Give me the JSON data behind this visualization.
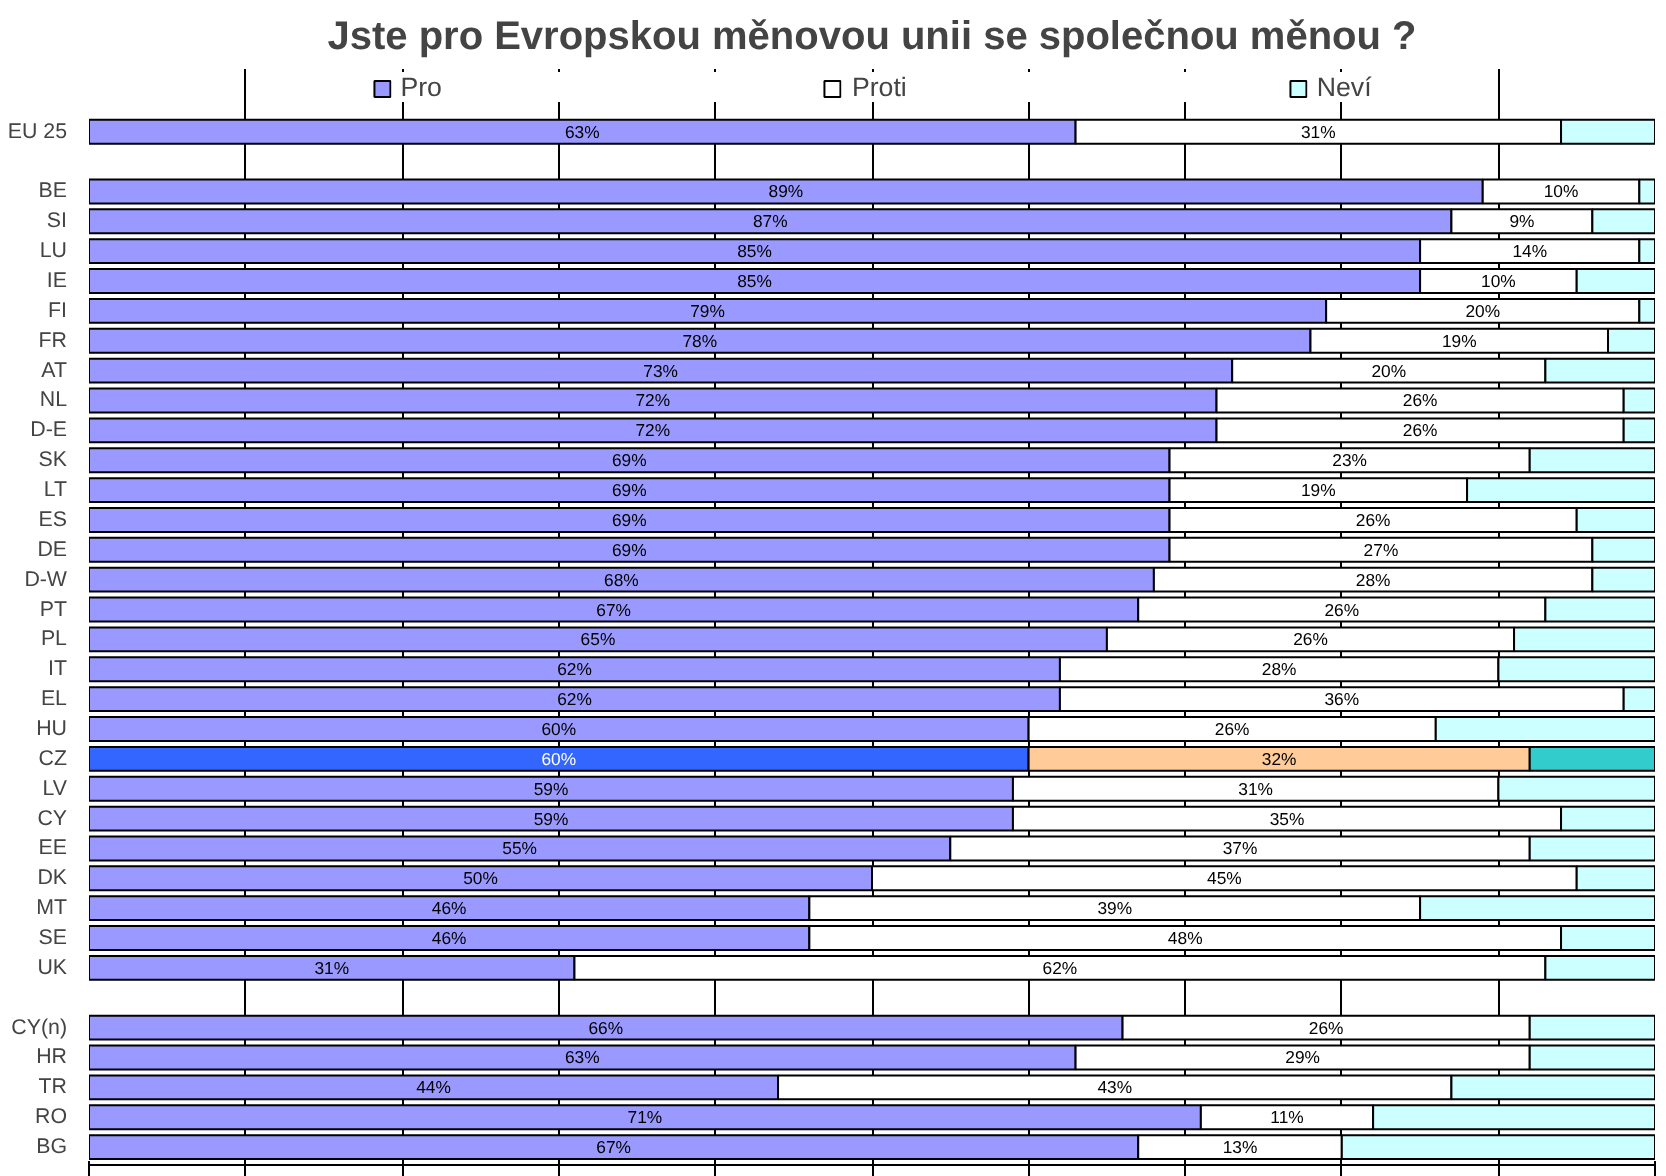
{
  "chart_data": {
    "type": "bar",
    "orientation": "horizontal",
    "stacked": true,
    "title": "Jste pro Evropskou měnovou unii se společnou měnou ?",
    "categories": [
      "EU 25",
      null,
      "BE",
      "SI",
      "LU",
      "IE",
      "FI",
      "FR",
      "AT",
      "NL",
      "D-E",
      "SK",
      "LT",
      "ES",
      "DE",
      "D-W",
      "PT",
      "PL",
      "IT",
      "EL",
      "HU",
      "CZ",
      "LV",
      "CY",
      "EE",
      "DK",
      "MT",
      "SE",
      "UK",
      null,
      "CY(n)",
      "HR",
      "TR",
      "RO",
      "BG"
    ],
    "series": [
      {
        "name": "Pro",
        "color": "#9999ff",
        "colors": [
          null,
          null,
          null,
          null,
          null,
          null,
          null,
          null,
          null,
          null,
          null,
          null,
          null,
          null,
          null,
          null,
          null,
          null,
          null,
          null,
          null,
          "#3366ff",
          null,
          null,
          null,
          null,
          null,
          null,
          null,
          null,
          null,
          null,
          null,
          null,
          null
        ],
        "values": [
          63,
          null,
          89,
          87,
          85,
          85,
          79,
          78,
          73,
          72,
          72,
          69,
          69,
          69,
          69,
          68,
          67,
          65,
          62,
          62,
          60,
          60,
          59,
          59,
          55,
          50,
          46,
          46,
          31,
          null,
          66,
          63,
          44,
          71,
          67
        ],
        "value_labels": [
          "63%",
          null,
          "89%",
          "87%",
          "85%",
          "85%",
          "79%",
          "78%",
          "73%",
          "72%",
          "72%",
          "69%",
          "69%",
          "69%",
          "69%",
          "68%",
          "67%",
          "65%",
          "62%",
          "62%",
          "60%",
          "60%",
          "59%",
          "59%",
          "55%",
          "50%",
          "46%",
          "46%",
          "31%",
          null,
          "66%",
          "63%",
          "44%",
          "71%",
          "67%"
        ]
      },
      {
        "name": "Proti",
        "color": "#ffffff",
        "colors": [
          null,
          null,
          null,
          null,
          null,
          null,
          null,
          null,
          null,
          null,
          null,
          null,
          null,
          null,
          null,
          null,
          null,
          null,
          null,
          null,
          null,
          "#ffcc99",
          null,
          null,
          null,
          null,
          null,
          null,
          null,
          null,
          null,
          null,
          null,
          null,
          null
        ],
        "values": [
          31,
          null,
          10,
          9,
          14,
          10,
          20,
          19,
          20,
          26,
          26,
          23,
          19,
          26,
          27,
          28,
          26,
          26,
          28,
          36,
          26,
          32,
          31,
          35,
          37,
          45,
          39,
          48,
          62,
          null,
          26,
          29,
          43,
          11,
          13
        ],
        "value_labels": [
          "31%",
          null,
          "10%",
          "9%",
          "14%",
          "10%",
          "20%",
          "19%",
          "20%",
          "26%",
          "26%",
          "23%",
          "19%",
          "26%",
          "27%",
          "28%",
          "26%",
          "26%",
          "28%",
          "36%",
          "26%",
          "32%",
          "31%",
          "35%",
          "37%",
          "45%",
          "39%",
          "48%",
          "62%",
          null,
          "26%",
          "29%",
          "43%",
          "11%",
          "13%"
        ]
      },
      {
        "name": "Neví",
        "color": "#ccffff",
        "colors": [
          null,
          null,
          null,
          null,
          null,
          null,
          null,
          null,
          null,
          null,
          null,
          null,
          null,
          null,
          null,
          null,
          null,
          null,
          null,
          null,
          null,
          "#33cccc",
          null,
          null,
          null,
          null,
          null,
          null,
          null,
          null,
          null,
          null,
          null,
          null,
          null
        ],
        "values": [
          6,
          null,
          1,
          4,
          1,
          5,
          1,
          3,
          7,
          2,
          2,
          8,
          12,
          5,
          4,
          4,
          7,
          9,
          10,
          2,
          14,
          8,
          10,
          6,
          8,
          5,
          15,
          6,
          7,
          null,
          8,
          8,
          13,
          18,
          20
        ]
      }
    ],
    "xlim": [
      0,
      100
    ],
    "xticks": [
      {
        "value": 0,
        "label": null
      },
      {
        "value": 10,
        "label": null
      },
      {
        "value": 20,
        "label": null
      },
      {
        "value": 30,
        "label": null
      },
      {
        "value": 40,
        "label": null
      },
      {
        "value": 50,
        "label": null
      },
      {
        "value": 60,
        "label": null
      },
      {
        "value": 70,
        "label": null
      },
      {
        "value": 80,
        "label": null
      },
      {
        "value": 90,
        "label": null
      },
      {
        "value": 100,
        "label": null
      }
    ],
    "tick_labels": "y",
    "grid": "x",
    "legend": "top"
  }
}
